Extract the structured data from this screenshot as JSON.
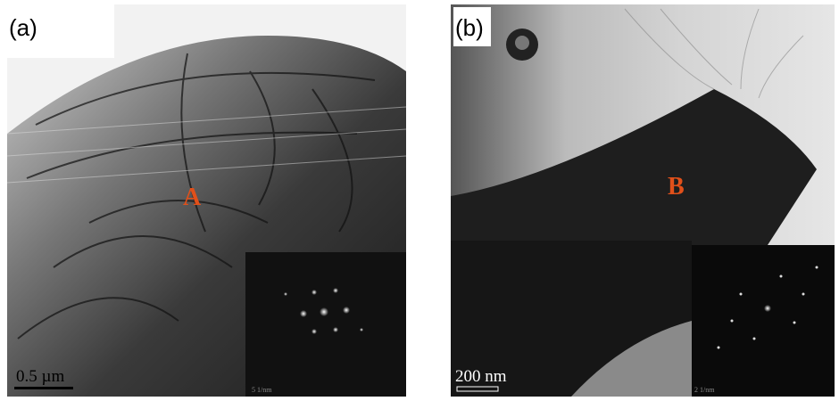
{
  "panels": [
    {
      "label": "(a)",
      "marker": "A",
      "scale_bar": "0.5 µm",
      "inset_scale": "5 1/nm"
    },
    {
      "label": "(b)",
      "marker": "B",
      "scale_bar": "200 nm",
      "inset_scale": "2 1/nm"
    }
  ]
}
